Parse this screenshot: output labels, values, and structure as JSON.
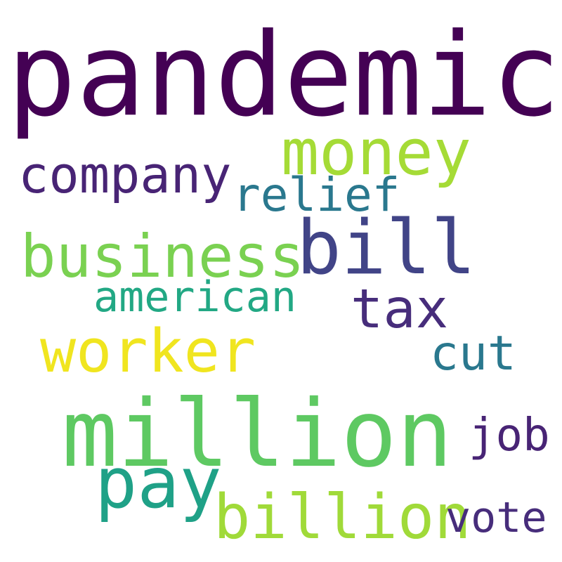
{
  "wordcloud": {
    "background": "#ffffff",
    "words": [
      {
        "key": "pandemic",
        "text": "pandemic",
        "color": "#440154"
      },
      {
        "key": "money",
        "text": "money",
        "color": "#a5db36"
      },
      {
        "key": "company",
        "text": "company",
        "color": "#482475"
      },
      {
        "key": "relief",
        "text": "relief",
        "color": "#2a788e"
      },
      {
        "key": "business",
        "text": "business",
        "color": "#7ad151"
      },
      {
        "key": "bill",
        "text": "bill",
        "color": "#414487"
      },
      {
        "key": "american",
        "text": "american",
        "color": "#22a884"
      },
      {
        "key": "tax",
        "text": "tax",
        "color": "#472d7b"
      },
      {
        "key": "worker",
        "text": "worker",
        "color": "#f0e51f"
      },
      {
        "key": "cut",
        "text": "cut",
        "color": "#2a788e"
      },
      {
        "key": "million",
        "text": "million",
        "color": "#5ec962"
      },
      {
        "key": "job",
        "text": "job",
        "color": "#482475"
      },
      {
        "key": "pay",
        "text": "pay",
        "color": "#1fa187"
      },
      {
        "key": "billion",
        "text": "billion",
        "color": "#a0da39"
      },
      {
        "key": "vote",
        "text": "vote",
        "color": "#472d7b"
      }
    ]
  }
}
